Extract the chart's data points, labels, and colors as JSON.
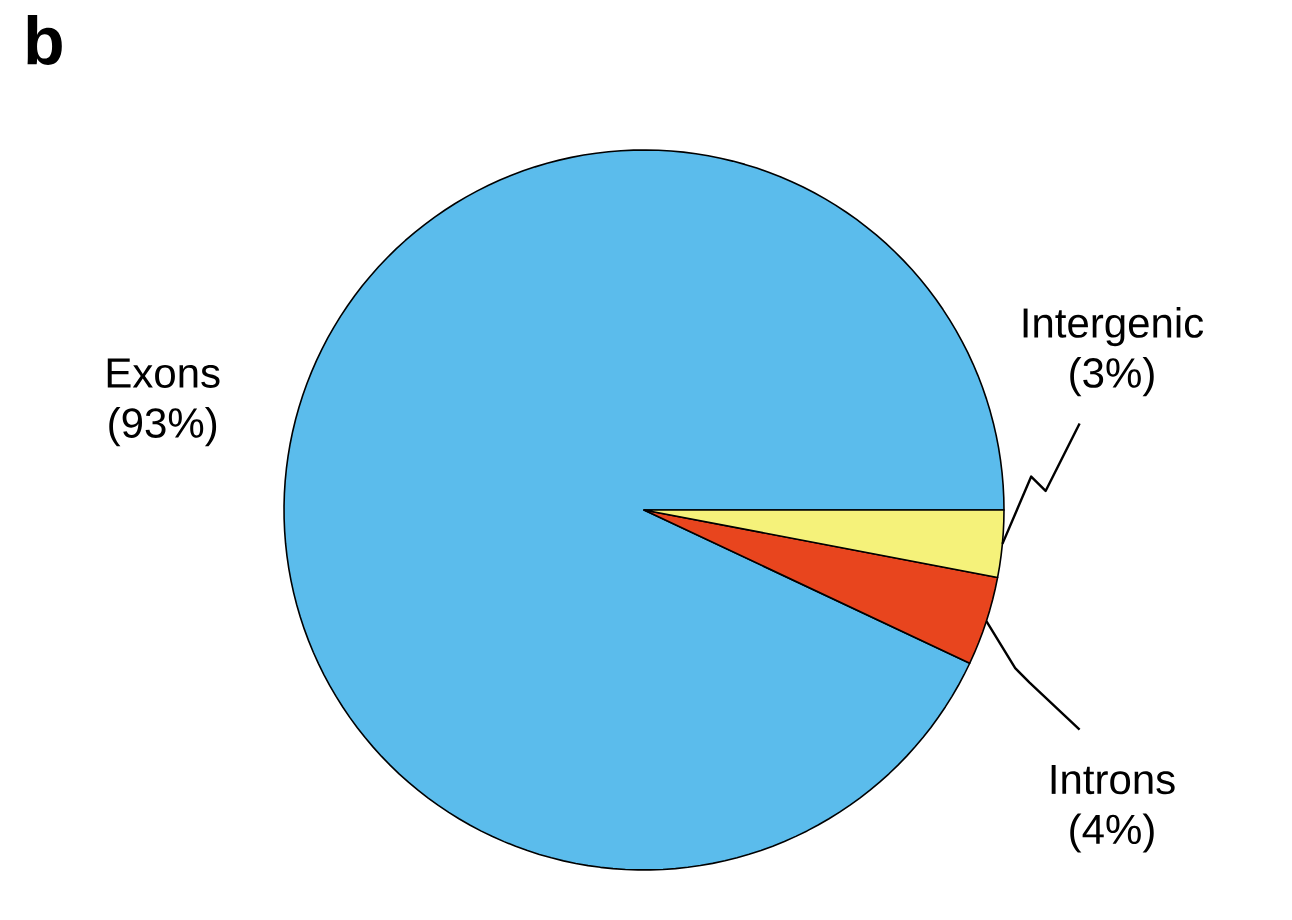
{
  "chart_data": {
    "type": "pie",
    "title": "b",
    "categories": [
      "Exons",
      "Introns",
      "Intergenic"
    ],
    "values": [
      93,
      4,
      3
    ],
    "value_labels": [
      "(93%)",
      "(4%)",
      "(3%)"
    ],
    "colors": [
      "#5bbcec",
      "#e8451e",
      "#f5f27a"
    ]
  }
}
